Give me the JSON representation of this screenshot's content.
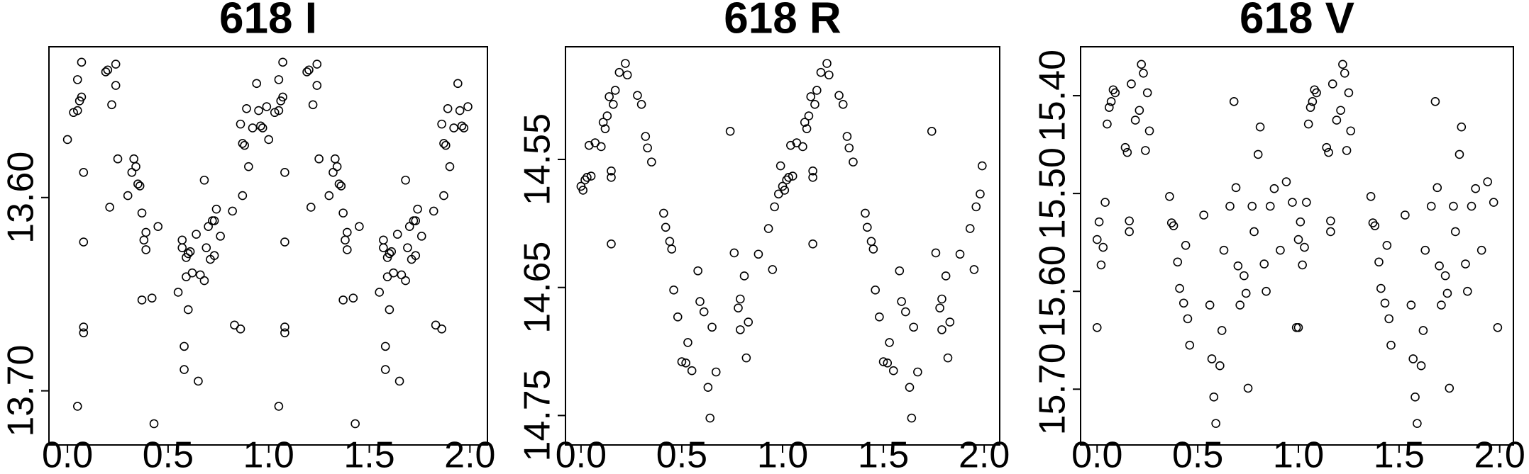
{
  "chart_data": [
    {
      "type": "scatter",
      "title": "618 I",
      "color": "#000000",
      "x": [
        0.0,
        0.03,
        0.05,
        0.05,
        0.06,
        0.07,
        0.07,
        0.08,
        0.08,
        0.05,
        0.08,
        0.08,
        0.19,
        0.2,
        0.22,
        0.24,
        0.24,
        0.21,
        0.25,
        0.3,
        0.32,
        0.33,
        0.34,
        0.35,
        0.36,
        0.37,
        0.37,
        0.39,
        0.38,
        0.39,
        0.42,
        0.43,
        0.45,
        0.55,
        0.57,
        0.57,
        0.58,
        0.58,
        0.59,
        0.59,
        0.6,
        0.6,
        0.61,
        0.62,
        0.64,
        0.65,
        0.66,
        0.68,
        0.68,
        0.69,
        0.7,
        0.71,
        0.72,
        0.73,
        0.73,
        0.74,
        0.76,
        0.82,
        0.83,
        0.86,
        0.86,
        0.87,
        0.87,
        0.88,
        0.89,
        0.9,
        0.92,
        0.94,
        0.95,
        0.96,
        0.97,
        0.99,
        1.0,
        1.03,
        1.05,
        1.05,
        1.06,
        1.07,
        1.07,
        1.08,
        1.08,
        1.05,
        1.08,
        1.08,
        1.19,
        1.2,
        1.22,
        1.24,
        1.24,
        1.21,
        1.25,
        1.3,
        1.32,
        1.33,
        1.34,
        1.35,
        1.36,
        1.37,
        1.37,
        1.39,
        1.38,
        1.39,
        1.42,
        1.43,
        1.45,
        1.55,
        1.57,
        1.57,
        1.58,
        1.58,
        1.59,
        1.59,
        1.6,
        1.6,
        1.61,
        1.62,
        1.64,
        1.65,
        1.66,
        1.68,
        1.68,
        1.69,
        1.7,
        1.71,
        1.72,
        1.73,
        1.73,
        1.74,
        1.76,
        1.82,
        1.83,
        1.86,
        1.86,
        1.87,
        1.87,
        1.88,
        1.89,
        1.9,
        1.92,
        1.94,
        1.95,
        1.96,
        1.97,
        1.99
      ],
      "values": [
        13.57,
        13.556,
        13.555,
        13.539,
        13.55,
        13.548,
        13.53,
        13.587,
        13.623,
        13.708,
        13.667,
        13.67,
        13.535,
        13.534,
        13.552,
        13.531,
        13.542,
        13.605,
        13.58,
        13.599,
        13.587,
        13.58,
        13.584,
        13.593,
        13.594,
        13.608,
        13.653,
        13.627,
        13.622,
        13.618,
        13.652,
        13.717,
        13.615,
        13.649,
        13.622,
        13.626,
        13.689,
        13.677,
        13.631,
        13.641,
        13.658,
        13.629,
        13.628,
        13.639,
        13.619,
        13.695,
        13.64,
        13.591,
        13.643,
        13.626,
        13.615,
        13.632,
        13.612,
        13.612,
        13.63,
        13.606,
        13.62,
        13.607,
        13.666,
        13.668,
        13.562,
        13.572,
        13.599,
        13.573,
        13.554,
        13.584,
        13.564,
        13.541,
        13.555,
        13.563,
        13.564,
        13.553,
        13.57,
        13.556,
        13.555,
        13.539,
        13.55,
        13.548,
        13.53,
        13.587,
        13.623,
        13.708,
        13.667,
        13.67,
        13.535,
        13.534,
        13.552,
        13.531,
        13.542,
        13.605,
        13.58,
        13.599,
        13.587,
        13.58,
        13.584,
        13.593,
        13.594,
        13.608,
        13.653,
        13.627,
        13.622,
        13.618,
        13.652,
        13.717,
        13.615,
        13.649,
        13.622,
        13.626,
        13.689,
        13.677,
        13.631,
        13.641,
        13.658,
        13.629,
        13.628,
        13.639,
        13.619,
        13.695,
        13.64,
        13.591,
        13.643,
        13.626,
        13.615,
        13.632,
        13.612,
        13.612,
        13.63,
        13.606,
        13.62,
        13.607,
        13.666,
        13.668,
        13.562,
        13.572,
        13.599,
        13.573,
        13.554,
        13.584,
        13.564,
        13.541,
        13.555,
        13.563,
        13.564,
        13.553
      ],
      "xlim": [
        -0.092,
        2.087
      ],
      "ylim": [
        13.728,
        13.522
      ],
      "xticks": [
        {
          "value": 0,
          "label": "0.0"
        },
        0.5,
        {
          "value": 1,
          "label": "1.0"
        },
        1.5,
        {
          "value": 2,
          "label": "2.0"
        }
      ],
      "yticks": [
        {
          "value": 13.6,
          "label": "13.60"
        },
        {
          "value": 13.7,
          "label": "13.70"
        }
      ]
    },
    {
      "type": "scatter",
      "title": "618 R",
      "color": "#000000",
      "x": [
        0.0,
        0.01,
        0.02,
        0.03,
        0.05,
        0.04,
        0.07,
        0.1,
        0.11,
        0.12,
        0.13,
        0.14,
        0.15,
        0.15,
        0.15,
        0.16,
        0.17,
        0.19,
        0.22,
        0.23,
        0.28,
        0.3,
        0.32,
        0.33,
        0.35,
        0.41,
        0.42,
        0.44,
        0.45,
        0.46,
        0.48,
        0.5,
        0.52,
        0.53,
        0.55,
        0.58,
        0.59,
        0.61,
        0.63,
        0.64,
        0.65,
        0.67,
        0.74,
        0.76,
        0.78,
        0.79,
        0.79,
        0.81,
        0.82,
        0.83,
        0.88,
        0.93,
        0.95,
        0.96,
        0.98,
        0.99,
        1.0,
        1.01,
        1.02,
        1.03,
        1.05,
        1.04,
        1.07,
        1.1,
        1.11,
        1.12,
        1.13,
        1.14,
        1.15,
        1.15,
        1.15,
        1.16,
        1.17,
        1.19,
        1.22,
        1.23,
        1.28,
        1.3,
        1.32,
        1.33,
        1.35,
        1.41,
        1.42,
        1.44,
        1.45,
        1.46,
        1.48,
        1.5,
        1.52,
        1.53,
        1.55,
        1.58,
        1.59,
        1.61,
        1.63,
        1.64,
        1.65,
        1.67,
        1.74,
        1.76,
        1.78,
        1.79,
        1.79,
        1.81,
        1.82,
        1.83,
        1.88,
        1.93,
        1.95,
        1.96,
        1.98,
        1.99
      ],
      "values": [
        14.571,
        14.574,
        14.566,
        14.564,
        14.563,
        14.539,
        14.537,
        14.54,
        14.521,
        14.526,
        14.516,
        14.501,
        14.559,
        14.564,
        14.616,
        14.507,
        14.496,
        14.482,
        14.475,
        14.484,
        14.5,
        14.507,
        14.532,
        14.541,
        14.552,
        14.592,
        14.603,
        14.614,
        14.62,
        14.652,
        14.673,
        14.708,
        14.709,
        14.693,
        14.715,
        14.637,
        14.661,
        14.669,
        14.728,
        14.752,
        14.681,
        14.716,
        14.528,
        14.623,
        14.666,
        14.683,
        14.659,
        14.641,
        14.705,
        14.677,
        14.624,
        14.604,
        14.636,
        14.587,
        14.577,
        14.555,
        14.571,
        14.574,
        14.566,
        14.564,
        14.563,
        14.539,
        14.537,
        14.54,
        14.521,
        14.526,
        14.516,
        14.501,
        14.559,
        14.564,
        14.616,
        14.507,
        14.496,
        14.482,
        14.475,
        14.484,
        14.5,
        14.507,
        14.532,
        14.541,
        14.552,
        14.592,
        14.603,
        14.614,
        14.62,
        14.652,
        14.673,
        14.708,
        14.709,
        14.693,
        14.715,
        14.637,
        14.661,
        14.669,
        14.728,
        14.752,
        14.681,
        14.716,
        14.528,
        14.623,
        14.666,
        14.683,
        14.659,
        14.641,
        14.705,
        14.677,
        14.624,
        14.604,
        14.636,
        14.587,
        14.577,
        14.555
      ],
      "xlim": [
        -0.077,
        2.077
      ],
      "ylim": [
        14.773,
        14.462
      ],
      "xticks": [
        {
          "value": 0,
          "label": "0.0"
        },
        0.5,
        {
          "value": 1,
          "label": "1.0"
        },
        1.5,
        {
          "value": 2,
          "label": "2.0"
        }
      ],
      "yticks": [
        14.55,
        14.65,
        14.75
      ]
    },
    {
      "type": "scatter",
      "title": "618 V",
      "color": "#000000",
      "x": [
        0.0,
        0.0,
        0.01,
        0.02,
        0.03,
        0.04,
        0.05,
        0.06,
        0.07,
        0.08,
        0.09,
        0.14,
        0.15,
        0.16,
        0.16,
        0.17,
        0.19,
        0.21,
        0.22,
        0.23,
        0.24,
        0.25,
        0.26,
        0.36,
        0.37,
        0.38,
        0.4,
        0.41,
        0.43,
        0.44,
        0.45,
        0.46,
        0.53,
        0.56,
        0.57,
        0.58,
        0.59,
        0.61,
        0.62,
        0.63,
        0.66,
        0.68,
        0.69,
        0.7,
        0.71,
        0.73,
        0.74,
        0.75,
        0.77,
        0.78,
        0.8,
        0.81,
        0.83,
        0.84,
        0.86,
        0.88,
        0.91,
        0.94,
        0.97,
        0.99,
        1.0,
        1.0,
        1.01,
        1.02,
        1.03,
        1.04,
        1.05,
        1.06,
        1.07,
        1.08,
        1.09,
        1.14,
        1.15,
        1.16,
        1.16,
        1.17,
        1.19,
        1.21,
        1.22,
        1.23,
        1.24,
        1.25,
        1.26,
        1.36,
        1.37,
        1.38,
        1.4,
        1.41,
        1.43,
        1.44,
        1.45,
        1.46,
        1.53,
        1.56,
        1.57,
        1.58,
        1.59,
        1.61,
        1.62,
        1.63,
        1.66,
        1.68,
        1.69,
        1.7,
        1.71,
        1.73,
        1.74,
        1.75,
        1.77,
        1.78,
        1.8,
        1.81,
        1.83,
        1.84,
        1.86,
        1.88,
        1.91,
        1.94,
        1.97,
        1.99
      ],
      "values": [
        15.547,
        15.637,
        15.529,
        15.573,
        15.555,
        15.509,
        15.429,
        15.412,
        15.406,
        15.394,
        15.397,
        15.453,
        15.458,
        15.528,
        15.539,
        15.388,
        15.425,
        15.415,
        15.368,
        15.377,
        15.456,
        15.397,
        15.436,
        15.503,
        15.53,
        15.533,
        15.57,
        15.597,
        15.612,
        15.553,
        15.628,
        15.655,
        15.522,
        15.614,
        15.669,
        15.708,
        15.735,
        15.676,
        15.64,
        15.558,
        15.513,
        15.406,
        15.494,
        15.574,
        15.614,
        15.584,
        15.602,
        15.699,
        15.513,
        15.539,
        15.46,
        15.432,
        15.572,
        15.6,
        15.513,
        15.495,
        15.558,
        15.488,
        15.509,
        15.637,
        15.547,
        15.637,
        15.529,
        15.573,
        15.555,
        15.509,
        15.429,
        15.412,
        15.406,
        15.394,
        15.397,
        15.453,
        15.458,
        15.528,
        15.539,
        15.388,
        15.425,
        15.415,
        15.368,
        15.377,
        15.456,
        15.397,
        15.436,
        15.503,
        15.53,
        15.533,
        15.57,
        15.597,
        15.612,
        15.553,
        15.628,
        15.655,
        15.522,
        15.614,
        15.669,
        15.708,
        15.735,
        15.676,
        15.64,
        15.558,
        15.513,
        15.406,
        15.494,
        15.574,
        15.614,
        15.584,
        15.602,
        15.699,
        15.513,
        15.539,
        15.46,
        15.432,
        15.572,
        15.6,
        15.513,
        15.495,
        15.558,
        15.488,
        15.509,
        15.637
      ],
      "xlim": [
        -0.082,
        2.068
      ],
      "ylim": [
        15.757,
        15.35
      ],
      "xticks": [
        {
          "value": 0,
          "label": "0.0"
        },
        0.5,
        {
          "value": 1,
          "label": "1.0"
        },
        1.5,
        {
          "value": 2,
          "label": "2.0"
        }
      ],
      "yticks": [
        {
          "value": 15.4,
          "label": "15.40"
        },
        {
          "value": 15.5,
          "label": "15.50"
        },
        {
          "value": 15.6,
          "label": "15.60"
        },
        {
          "value": 15.7,
          "label": "15.70"
        }
      ]
    }
  ]
}
